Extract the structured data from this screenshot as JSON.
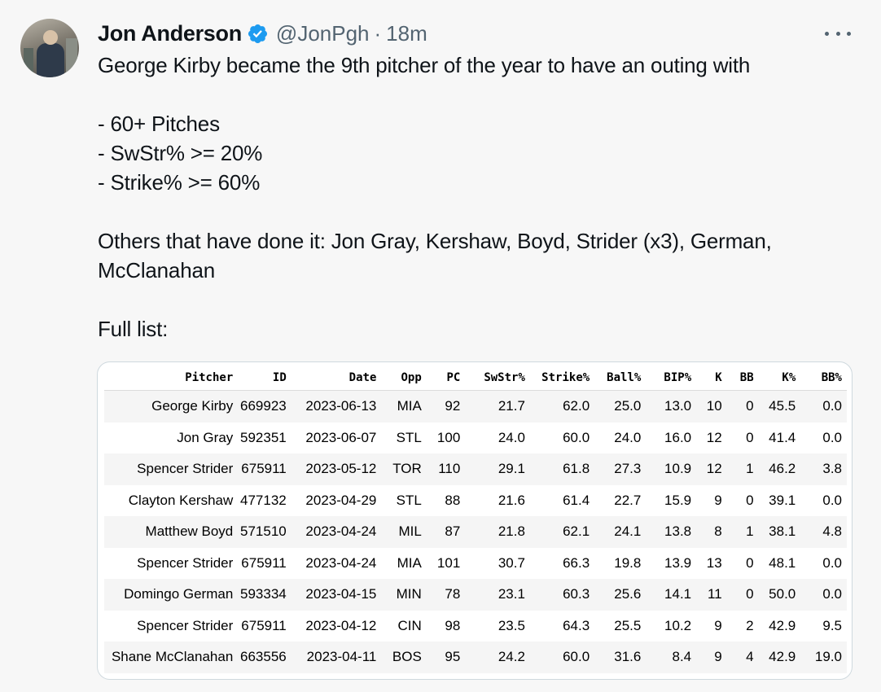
{
  "author": {
    "name": "Jon Anderson",
    "verified_icon": "verified-badge-icon",
    "handle": "@JonPgh",
    "separator": "·",
    "time": "18m"
  },
  "colors": {
    "verified": "#1d9bf0",
    "secondary_text": "#536471",
    "card_border": "#cfd9de"
  },
  "tweet": {
    "text": "George Kirby became the 9th pitcher of the year to have an outing with\n\n- 60+ Pitches\n- SwStr% >= 20%\n- Strike% >= 60%\n\nOthers that have done it: Jon Gray, Kershaw, Boyd, Strider (x3), German, McClanahan\n\nFull list:"
  },
  "table": {
    "headers": [
      "Pitcher",
      "ID",
      "Date",
      "Opp",
      "PC",
      "SwStr%",
      "Strike%",
      "Ball%",
      "BIP%",
      "K",
      "BB",
      "K%",
      "BB%"
    ],
    "rows": [
      [
        "George Kirby",
        "669923",
        "2023-06-13",
        "MIA",
        "92",
        "21.7",
        "62.0",
        "25.0",
        "13.0",
        "10",
        "0",
        "45.5",
        "0.0"
      ],
      [
        "Jon Gray",
        "592351",
        "2023-06-07",
        "STL",
        "100",
        "24.0",
        "60.0",
        "24.0",
        "16.0",
        "12",
        "0",
        "41.4",
        "0.0"
      ],
      [
        "Spencer Strider",
        "675911",
        "2023-05-12",
        "TOR",
        "110",
        "29.1",
        "61.8",
        "27.3",
        "10.9",
        "12",
        "1",
        "46.2",
        "3.8"
      ],
      [
        "Clayton Kershaw",
        "477132",
        "2023-04-29",
        "STL",
        "88",
        "21.6",
        "61.4",
        "22.7",
        "15.9",
        "9",
        "0",
        "39.1",
        "0.0"
      ],
      [
        "Matthew Boyd",
        "571510",
        "2023-04-24",
        "MIL",
        "87",
        "21.8",
        "62.1",
        "24.1",
        "13.8",
        "8",
        "1",
        "38.1",
        "4.8"
      ],
      [
        "Spencer Strider",
        "675911",
        "2023-04-24",
        "MIA",
        "101",
        "30.7",
        "66.3",
        "19.8",
        "13.9",
        "13",
        "0",
        "48.1",
        "0.0"
      ],
      [
        "Domingo German",
        "593334",
        "2023-04-15",
        "MIN",
        "78",
        "23.1",
        "60.3",
        "25.6",
        "14.1",
        "11",
        "0",
        "50.0",
        "0.0"
      ],
      [
        "Spencer Strider",
        "675911",
        "2023-04-12",
        "CIN",
        "98",
        "23.5",
        "64.3",
        "25.5",
        "10.2",
        "9",
        "2",
        "42.9",
        "9.5"
      ],
      [
        "Shane McClanahan",
        "663556",
        "2023-04-11",
        "BOS",
        "95",
        "24.2",
        "60.0",
        "31.6",
        "8.4",
        "9",
        "4",
        "42.9",
        "19.0"
      ]
    ]
  }
}
